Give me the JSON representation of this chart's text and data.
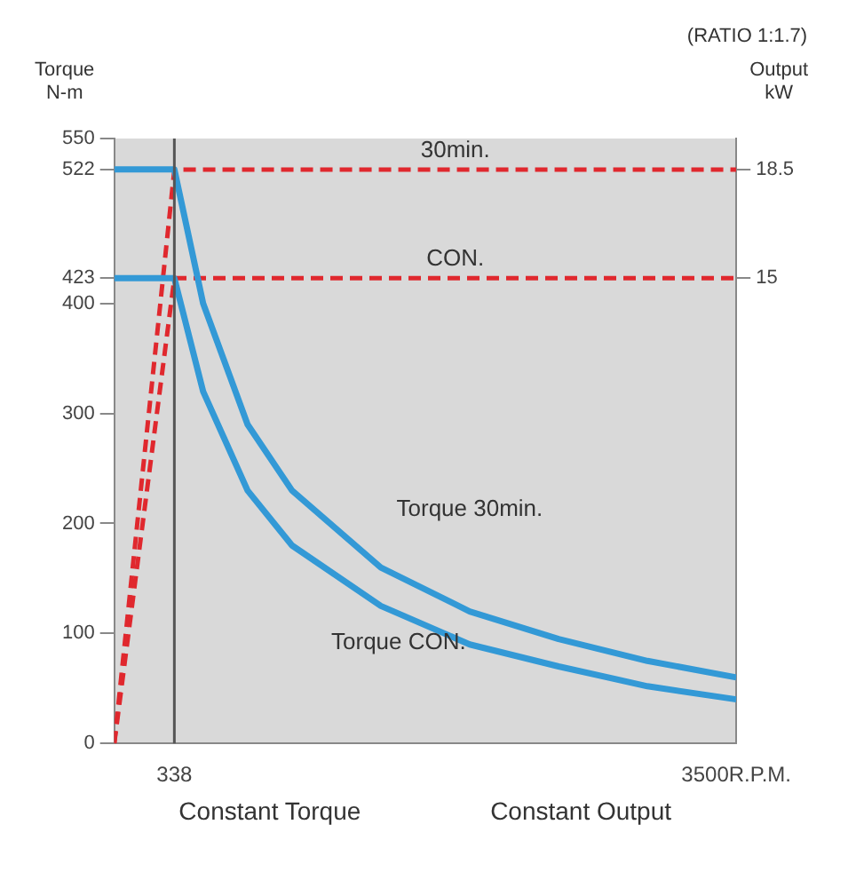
{
  "chart_data": {
    "type": "line",
    "subtitle": "(RATIO 1:1.7)",
    "xlabel": null,
    "ylabel": "Torque N-m",
    "y2label": "Output kW",
    "xlim": [
      0,
      3500
    ],
    "xticks": [
      338,
      {
        "value": 3500,
        "label": "3500R.P.M."
      }
    ],
    "ylim": [
      0,
      550
    ],
    "yticks": [
      0,
      100,
      200,
      300,
      400,
      423,
      522,
      550
    ],
    "y2lim": [
      0,
      19.5
    ],
    "y2ticks": [
      15,
      18.5
    ],
    "grid": false,
    "legend": false,
    "marker": "none",
    "series": [
      {
        "name": "Torque 30min.",
        "color": "#3399d6",
        "line_style": "solid",
        "x": [
          0,
          338,
          500,
          750,
          1000,
          1500,
          2000,
          2500,
          3000,
          3500
        ],
        "values": [
          522,
          522,
          400,
          290,
          230,
          160,
          120,
          95,
          75,
          60
        ]
      },
      {
        "name": "Torque CON.",
        "color": "#3399d6",
        "line_style": "solid",
        "x": [
          0,
          338,
          500,
          750,
          1000,
          1500,
          2000,
          2500,
          3000,
          3500
        ],
        "values": [
          423,
          423,
          320,
          230,
          180,
          125,
          90,
          70,
          52,
          40
        ]
      },
      {
        "name": "30min.",
        "color": "#e0282e",
        "line_style": "dashed",
        "axis": "y2",
        "x": [
          0,
          338,
          3500
        ],
        "values": [
          0,
          18.5,
          18.5
        ]
      },
      {
        "name": "CON.",
        "color": "#e0282e",
        "line_style": "dashed",
        "axis": "y2",
        "x": [
          0,
          338,
          3500
        ],
        "values": [
          0,
          15,
          15
        ]
      }
    ],
    "ref_lines": [
      {
        "axis": "x",
        "value": 338,
        "color": "#555555"
      }
    ],
    "annotations": [
      "Constant Torque",
      "Constant Output"
    ]
  }
}
